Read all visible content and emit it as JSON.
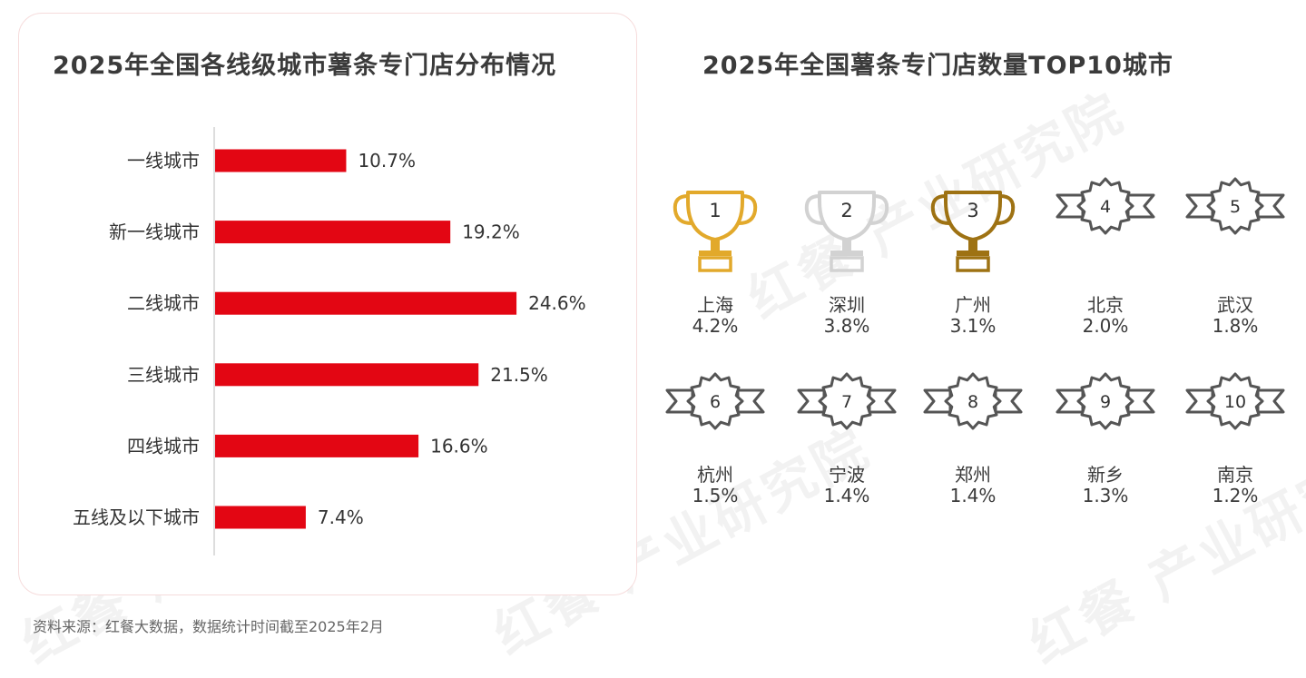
{
  "left_panel": {
    "title": "2025年全国各线级城市薯条专门店分布情况"
  },
  "right_panel": {
    "title": "2025年全国薯条专门店数量TOP10城市",
    "cities": [
      {
        "rank": "1",
        "name": "上海",
        "pct": "4.2%",
        "badge": "trophy",
        "color": "#e2a92b"
      },
      {
        "rank": "2",
        "name": "深圳",
        "pct": "3.8%",
        "badge": "trophy",
        "color": "#d2d2d2"
      },
      {
        "rank": "3",
        "name": "广州",
        "pct": "3.1%",
        "badge": "trophy",
        "color": "#9e7213"
      },
      {
        "rank": "4",
        "name": "北京",
        "pct": "2.0%",
        "badge": "ribbon",
        "color": "#555555"
      },
      {
        "rank": "5",
        "name": "武汉",
        "pct": "1.8%",
        "badge": "ribbon",
        "color": "#555555"
      },
      {
        "rank": "6",
        "name": "杭州",
        "pct": "1.5%",
        "badge": "ribbon",
        "color": "#555555"
      },
      {
        "rank": "7",
        "name": "宁波",
        "pct": "1.4%",
        "badge": "ribbon",
        "color": "#555555"
      },
      {
        "rank": "8",
        "name": "郑州",
        "pct": "1.4%",
        "badge": "ribbon",
        "color": "#555555"
      },
      {
        "rank": "9",
        "name": "新乡",
        "pct": "1.3%",
        "badge": "ribbon",
        "color": "#555555"
      },
      {
        "rank": "10",
        "name": "南京",
        "pct": "1.2%",
        "badge": "ribbon",
        "color": "#555555"
      }
    ]
  },
  "chart_data": {
    "type": "bar",
    "orientation": "horizontal",
    "title": "2025年全国各线级城市薯条专门店分布情况",
    "categories": [
      "一线城市",
      "新一线城市",
      "二线城市",
      "三线城市",
      "四线城市",
      "五线及以下城市"
    ],
    "values": [
      10.7,
      19.2,
      24.6,
      21.5,
      16.6,
      7.4
    ],
    "value_labels": [
      "10.7%",
      "19.2%",
      "24.6%",
      "21.5%",
      "16.6%",
      "7.4%"
    ],
    "unit": "%",
    "bar_color": "#e30613",
    "grid": false,
    "legend": "none"
  },
  "footer": {
    "source": "资料来源：红餐大数据，数据统计时间截至2025年2月"
  },
  "watermark": {
    "text": "红餐 产业研究院"
  }
}
